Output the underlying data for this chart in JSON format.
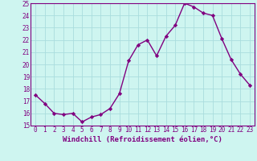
{
  "hours": [
    0,
    1,
    2,
    3,
    4,
    5,
    6,
    7,
    8,
    9,
    10,
    11,
    12,
    13,
    14,
    15,
    16,
    17,
    18,
    19,
    20,
    21,
    22,
    23
  ],
  "values": [
    17.5,
    16.8,
    16.0,
    15.9,
    16.0,
    15.3,
    15.7,
    15.9,
    16.4,
    17.6,
    20.3,
    21.6,
    22.0,
    20.7,
    22.3,
    23.2,
    25.0,
    24.7,
    24.2,
    24.0,
    22.1,
    20.4,
    19.2,
    18.3
  ],
  "line_color": "#800080",
  "marker": "D",
  "marker_size": 2.2,
  "line_width": 1.0,
  "bg_color": "#cef5f0",
  "grid_color": "#aadddd",
  "xlabel": "Windchill (Refroidissement éolien,°C)",
  "xlabel_fontsize": 6.5,
  "tick_fontsize": 5.5,
  "ylim": [
    15,
    25
  ],
  "yticks": [
    15,
    16,
    17,
    18,
    19,
    20,
    21,
    22,
    23,
    24,
    25
  ],
  "xtick_labels": [
    "0",
    "1",
    "2",
    "3",
    "4",
    "5",
    "6",
    "7",
    "8",
    "9",
    "10",
    "11",
    "12",
    "13",
    "14",
    "15",
    "16",
    "17",
    "18",
    "19",
    "20",
    "21",
    "22",
    "23"
  ],
  "axis_label_color": "#800080"
}
